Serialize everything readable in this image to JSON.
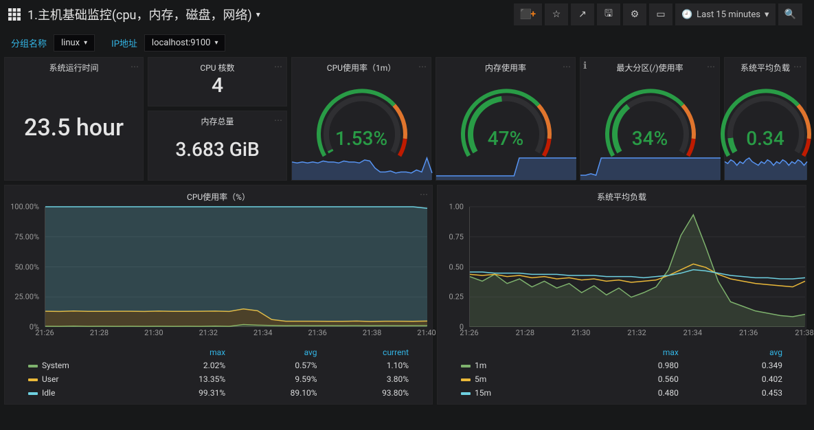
{
  "colors": {
    "bg": "#171819",
    "panel": "#212124",
    "text": "#d8d9da",
    "accent": "#33b5e5",
    "gauge_green": "#299c46",
    "gauge_orange": "#e0752d",
    "gauge_red": "#bf1b00",
    "spark_blue": "#5794f2",
    "series": {
      "system": "#7eb26d",
      "user": "#eab839",
      "idle": "#6ed0e0",
      "m1": "#7eb26d",
      "m5": "#eab839",
      "m15": "#6ed0e0"
    }
  },
  "toolbar": {
    "title": "1.主机基础监控(cpu，内存，磁盘，网络)",
    "time_label": "Last 15 minutes",
    "icons": [
      "add-panel",
      "star",
      "share",
      "save",
      "settings",
      "cycle",
      "tv"
    ]
  },
  "vars": {
    "group_label": "分组名称",
    "group_value": "linux",
    "ip_label": "IP地址",
    "ip_value": "localhost:9100"
  },
  "stat_uptime": {
    "title": "系统运行时间",
    "value": "23.5 hour"
  },
  "stat_cpu_cores": {
    "title": "CPU 核数",
    "value": "4"
  },
  "stat_mem_total": {
    "title": "内存总量",
    "value": "3.683 GiB"
  },
  "gauges": [
    {
      "title": "CPU使用率（1m）",
      "value_text": "1.53%",
      "frac": 0.015,
      "spark": [
        18,
        17,
        18,
        17,
        18,
        17,
        19,
        18,
        18,
        17,
        19,
        18,
        18,
        17,
        20,
        19,
        12,
        8,
        8,
        9,
        7,
        8,
        8,
        7,
        10,
        8,
        22,
        7
      ]
    },
    {
      "title": "内存使用率",
      "value_text": "47%",
      "frac": 0.47,
      "spark": [
        3,
        3,
        3,
        3,
        3,
        3,
        3,
        3,
        3,
        3,
        3,
        3,
        3,
        3,
        3,
        3,
        16,
        16,
        16,
        16,
        16,
        16,
        16,
        16,
        16,
        16,
        16,
        16
      ]
    },
    {
      "title": "最大分区(/)使用率",
      "value_text": "34%",
      "frac": 0.34,
      "info": true,
      "spark": [
        3,
        3,
        4,
        3,
        14,
        14,
        14,
        14,
        14,
        14,
        14,
        14,
        14,
        14,
        14,
        14,
        14,
        14,
        14,
        14,
        14,
        14,
        14,
        14,
        14,
        14,
        14,
        14
      ]
    },
    {
      "title": "系统平均负载",
      "value_text": "0.34",
      "frac": 0.1,
      "truncated": true,
      "spark": [
        10,
        9,
        11,
        10,
        8,
        10,
        9,
        11,
        12,
        10,
        9,
        8,
        10,
        9,
        11,
        10,
        8,
        10,
        9,
        11,
        10,
        8,
        10,
        9,
        11,
        10,
        8,
        10
      ]
    }
  ],
  "chart_cpu": {
    "title": "CPU使用率（%）",
    "ylabels": [
      "0%",
      "25.00%",
      "50.00%",
      "75.00%",
      "100.00%"
    ],
    "ylim": [
      0,
      100
    ],
    "xlabels": [
      "21:26",
      "21:28",
      "21:30",
      "21:32",
      "21:34",
      "21:36",
      "21:38",
      "21:40"
    ],
    "series": {
      "system": [
        0.6,
        0.5,
        0.7,
        0.5,
        0.6,
        0.5,
        0.6,
        0.5,
        0.6,
        0.5,
        0.6,
        0.5,
        0.7,
        0.5,
        2.0,
        1.5,
        1.2,
        1.0,
        1.1,
        1.0,
        1.1,
        1.0,
        1.1,
        1.0,
        1.1,
        1.0,
        1.1,
        1.1
      ],
      "user": [
        12.5,
        12.4,
        12.6,
        12.5,
        12.4,
        12.6,
        12.5,
        12.4,
        12.6,
        12.5,
        12.4,
        12.6,
        12.5,
        12.4,
        13.0,
        12.0,
        5.0,
        3.8,
        3.7,
        3.8,
        3.6,
        3.7,
        3.8,
        3.6,
        3.7,
        3.8,
        3.6,
        3.8
      ],
      "idle": [
        86.9,
        87.1,
        86.7,
        87.0,
        87.0,
        86.9,
        86.9,
        87.1,
        86.8,
        87.0,
        87.0,
        86.9,
        86.8,
        87.1,
        85.0,
        86.5,
        93.8,
        95.2,
        95.2,
        95.2,
        95.3,
        95.3,
        95.1,
        95.4,
        95.2,
        95.2,
        95.3,
        93.8
      ]
    },
    "legend_headers": [
      "",
      "max",
      "avg",
      "current"
    ],
    "legend_rows": [
      {
        "key": "system",
        "label": "System",
        "max": "2.02%",
        "avg": "0.57%",
        "current": "1.10%"
      },
      {
        "key": "user",
        "label": "User",
        "max": "13.35%",
        "avg": "9.59%",
        "current": "3.80%"
      },
      {
        "key": "idle",
        "label": "Idle",
        "max": "99.31%",
        "avg": "89.10%",
        "current": "93.80%"
      }
    ]
  },
  "chart_load": {
    "title": "系统平均负载",
    "ylabels": [
      "0",
      "0.25",
      "0.50",
      "0.75",
      "1.00"
    ],
    "ylim": [
      0,
      1.05
    ],
    "xlabels": [
      "21:26",
      "21:28",
      "21:30",
      "21:32",
      "21:34",
      "21:36",
      "21:38"
    ],
    "series": {
      "m1": [
        0.44,
        0.4,
        0.46,
        0.38,
        0.42,
        0.35,
        0.4,
        0.34,
        0.38,
        0.3,
        0.36,
        0.28,
        0.34,
        0.26,
        0.3,
        0.35,
        0.5,
        0.8,
        0.98,
        0.7,
        0.4,
        0.22,
        0.18,
        0.14,
        0.12,
        0.1,
        0.09,
        0.11
      ],
      "m5": [
        0.46,
        0.45,
        0.46,
        0.44,
        0.45,
        0.43,
        0.44,
        0.42,
        0.43,
        0.41,
        0.42,
        0.4,
        0.41,
        0.39,
        0.4,
        0.41,
        0.45,
        0.5,
        0.55,
        0.52,
        0.46,
        0.42,
        0.4,
        0.38,
        0.37,
        0.36,
        0.35,
        0.4
      ],
      "m15": [
        0.48,
        0.48,
        0.47,
        0.47,
        0.47,
        0.46,
        0.46,
        0.46,
        0.45,
        0.45,
        0.45,
        0.44,
        0.44,
        0.44,
        0.43,
        0.44,
        0.45,
        0.47,
        0.5,
        0.49,
        0.47,
        0.45,
        0.44,
        0.43,
        0.43,
        0.42,
        0.42,
        0.43
      ]
    },
    "legend_headers": [
      "",
      "max",
      "avg"
    ],
    "legend_rows": [
      {
        "key": "m1",
        "label": "1m",
        "max": "0.980",
        "avg": "0.349"
      },
      {
        "key": "m5",
        "label": "5m",
        "max": "0.560",
        "avg": "0.402"
      },
      {
        "key": "m15",
        "label": "15m",
        "max": "0.480",
        "avg": "0.453"
      }
    ]
  }
}
